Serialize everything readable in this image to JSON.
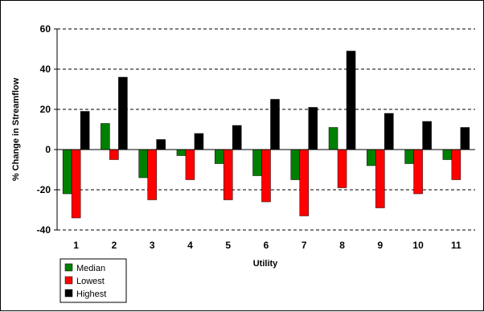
{
  "chart_data": {
    "type": "bar",
    "xlabel": "Utility",
    "ylabel": "% Change in Streamflow",
    "categories": [
      "1",
      "2",
      "3",
      "4",
      "5",
      "6",
      "7",
      "8",
      "9",
      "10",
      "11"
    ],
    "ylim": [
      -40,
      60
    ],
    "yticks": [
      -40,
      -20,
      0,
      20,
      40,
      60
    ],
    "grid": "horizontal-dashed",
    "legend_position": "bottom-left",
    "series": [
      {
        "name": "Median",
        "color": "#008000",
        "values": [
          -22,
          13,
          -14,
          -3,
          -7,
          -13,
          -15,
          11,
          -8,
          -7,
          -5
        ]
      },
      {
        "name": "Lowest",
        "color": "#ff0000",
        "values": [
          -34,
          -5,
          -25,
          -15,
          -25,
          -26,
          -33,
          -19,
          -29,
          -22,
          -15
        ]
      },
      {
        "name": "Highest",
        "color": "#000000",
        "values": [
          19,
          36,
          5,
          8,
          12,
          25,
          21,
          49,
          18,
          14,
          11
        ]
      }
    ]
  }
}
